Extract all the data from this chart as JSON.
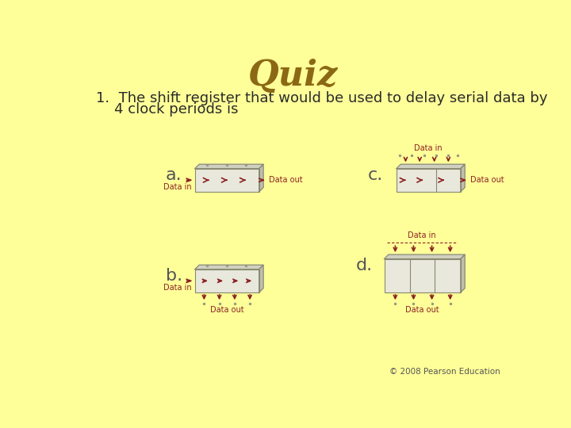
{
  "bg_color": "#FFFF99",
  "title": "Quiz",
  "title_color": "#8B6914",
  "title_fontsize": 32,
  "question_line1": "1.  The shift register that would be used to delay serial data by",
  "question_line2": "    4 clock periods is",
  "question_fontsize": 13,
  "question_color": "#2a2a2a",
  "label_color": "#8B2222",
  "box_face_color": "#E8E8DC",
  "box_edge_color": "#888870",
  "top_face_color": "#D0D0C0",
  "right_face_color": "#C0C0B0",
  "copyright": "© 2008 Pearson Education",
  "copyright_color": "#555555",
  "option_label_fontsize": 16,
  "option_label_color": "#555555",
  "small_label_fontsize": 7,
  "arrow_lw": 1.2,
  "depth": 7
}
